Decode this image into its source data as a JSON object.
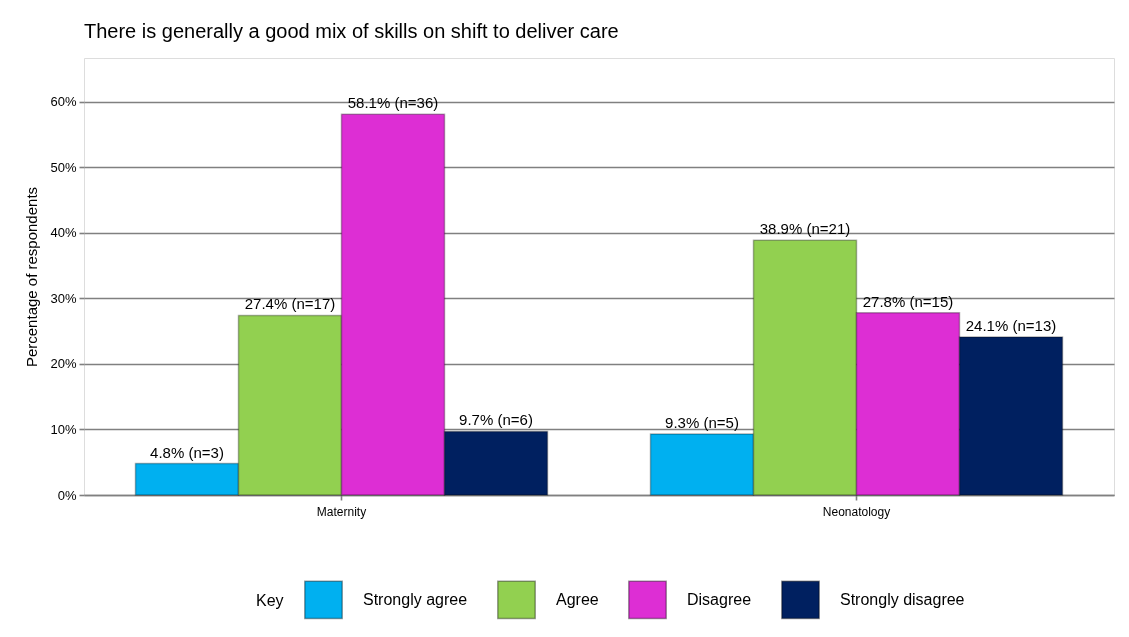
{
  "chart_data": {
    "type": "bar",
    "title": "There is generally a good mix of skills on shift to deliver care",
    "ylabel": "Percentage of respondents",
    "legend_title": "Key",
    "categories": [
      "Maternity",
      "Neonatology"
    ],
    "series": [
      {
        "name": "Strongly agree",
        "color": "#00b0f0",
        "values": [
          4.8,
          9.3
        ],
        "value_labels": [
          "4.8% (n=3)",
          "9.3% (n=5)"
        ]
      },
      {
        "name": "Agree",
        "color": "#92d050",
        "values": [
          27.4,
          38.9
        ],
        "value_labels": [
          "27.4% (n=17)",
          "38.9% (n=21)"
        ]
      },
      {
        "name": "Disagree",
        "color": "#dd2ed4",
        "values": [
          58.1,
          27.8
        ],
        "value_labels": [
          "58.1% (n=36)",
          "27.8% (n=15)"
        ]
      },
      {
        "name": "Strongly disagree",
        "color": "#002060",
        "values": [
          9.7,
          24.1
        ],
        "value_labels": [
          "9.7% (n=6)",
          "24.1% (n=13)"
        ]
      }
    ],
    "ylim": [
      0,
      66.7
    ],
    "yticks": [
      {
        "value": 0,
        "label": "0%"
      },
      {
        "value": 10,
        "label": "10%"
      },
      {
        "value": 20,
        "label": "20%"
      },
      {
        "value": 30,
        "label": "30%"
      },
      {
        "value": 40,
        "label": "40%"
      },
      {
        "value": 50,
        "label": "50%"
      },
      {
        "value": 60,
        "label": "60%"
      }
    ],
    "grid": "y",
    "legend": "bottom"
  }
}
